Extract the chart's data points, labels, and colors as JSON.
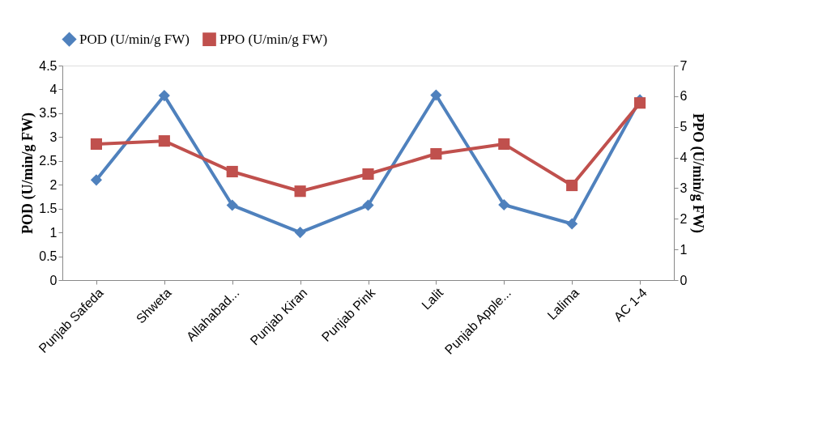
{
  "chart_data": {
    "type": "line",
    "categories": [
      "Punjab Safeda",
      "Shweta",
      "Allahabad...",
      "Punjab Kiran",
      "Punjab Pink",
      "Lalit",
      "Punjab Apple...",
      "Lalima",
      "AC 1-4"
    ],
    "ylabel": "POD (U/min/g FW)",
    "y2label": "PPO (U/min/g FW)",
    "ylim": [
      0,
      4.5
    ],
    "yticks": [
      0,
      0.5,
      1,
      1.5,
      2,
      2.5,
      3,
      3.5,
      4,
      4.5
    ],
    "y2lim": [
      0,
      7
    ],
    "y2ticks": [
      0,
      1,
      2,
      3,
      4,
      5,
      6,
      7
    ],
    "legend": "top",
    "grid": false,
    "line_style": "solid",
    "series": [
      {
        "name": "POD (U/min/g FW)",
        "color": "#4f81bd",
        "marker": "diamond",
        "values": [
          2.1,
          3.87,
          1.57,
          1.0,
          1.57,
          3.88,
          1.58,
          1.18,
          3.78
        ]
      },
      {
        "name": "PPO (U/min/g FW)",
        "color": "#c0504d",
        "marker": "square",
        "axis": "y2",
        "values": [
          4.44,
          4.54,
          3.54,
          2.9,
          3.46,
          4.12,
          4.44,
          3.09,
          5.78
        ]
      }
    ]
  }
}
